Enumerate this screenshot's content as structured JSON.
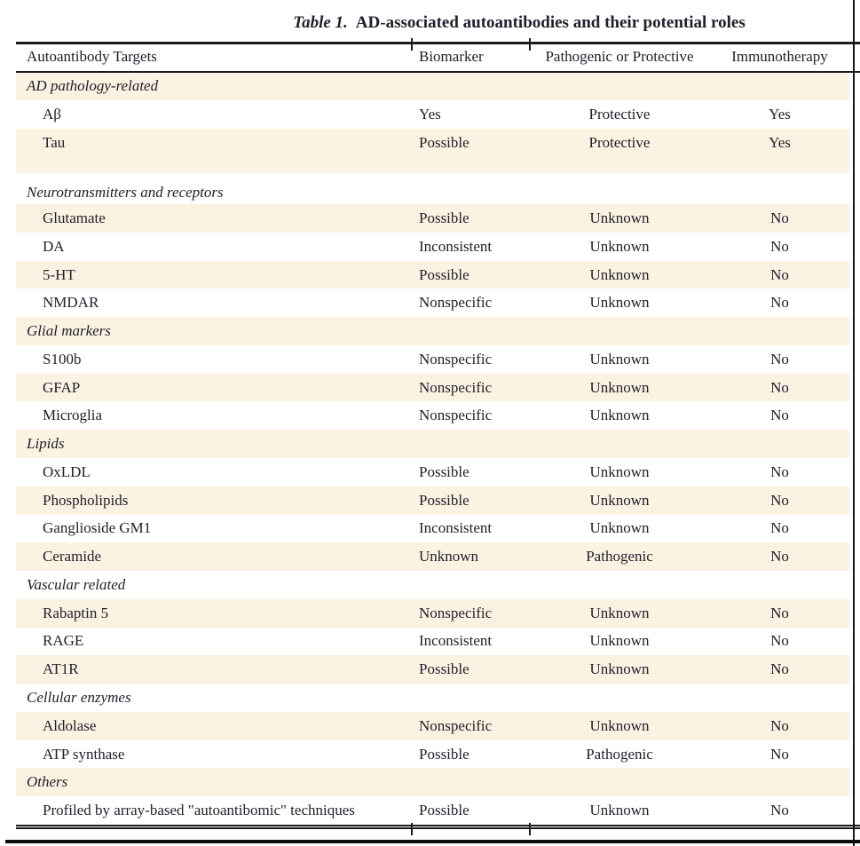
{
  "title": {
    "prefix": "Table 1.",
    "text": "AD-associated autoantibodies and their potential roles"
  },
  "columns": [
    "Autoantibody Targets",
    "Biomarker",
    "Pathogenic or Protective",
    "Immunotherapy"
  ],
  "colors": {
    "row_stripe": "#fcf2e1",
    "text": "#21212d",
    "rule": "#1c1c1c"
  },
  "rows": [
    {
      "type": "section",
      "bg": "cream",
      "label": "AD pathology-related"
    },
    {
      "type": "item",
      "bg": "white",
      "label": "Aβ",
      "biomarker": "Yes",
      "pathogenic_or_protective": "Protective",
      "immunotherapy": "Yes"
    },
    {
      "type": "item",
      "bg": "cream",
      "extra_space_below": true,
      "label": "Tau",
      "biomarker": "Possible",
      "pathogenic_or_protective": "Protective",
      "immunotherapy": "Yes"
    },
    {
      "type": "section",
      "bg": "white",
      "taller": true,
      "label": "Neurotransmitters and receptors"
    },
    {
      "type": "item",
      "bg": "cream",
      "label": "Glutamate",
      "biomarker": "Possible",
      "pathogenic_or_protective": "Unknown",
      "immunotherapy": "No"
    },
    {
      "type": "item",
      "bg": "white",
      "label": "DA",
      "biomarker": "Inconsistent",
      "pathogenic_or_protective": "Unknown",
      "immunotherapy": "No"
    },
    {
      "type": "item",
      "bg": "cream",
      "label": "5-HT",
      "biomarker": "Possible",
      "pathogenic_or_protective": "Unknown",
      "immunotherapy": "No"
    },
    {
      "type": "item",
      "bg": "white",
      "label": "NMDAR",
      "biomarker": "Nonspecific",
      "pathogenic_or_protective": "Unknown",
      "immunotherapy": "No"
    },
    {
      "type": "section",
      "bg": "cream",
      "label": "Glial markers"
    },
    {
      "type": "item",
      "bg": "white",
      "label": "S100b",
      "biomarker": "Nonspecific",
      "pathogenic_or_protective": "Unknown",
      "immunotherapy": "No"
    },
    {
      "type": "item",
      "bg": "cream",
      "label": "GFAP",
      "biomarker": "Nonspecific",
      "pathogenic_or_protective": "Unknown",
      "immunotherapy": "No"
    },
    {
      "type": "item",
      "bg": "white",
      "label": "Microglia",
      "biomarker": "Nonspecific",
      "pathogenic_or_protective": "Unknown",
      "immunotherapy": "No"
    },
    {
      "type": "section",
      "bg": "cream",
      "label": "Lipids"
    },
    {
      "type": "item",
      "bg": "white",
      "label": "OxLDL",
      "biomarker": "Possible",
      "pathogenic_or_protective": "Unknown",
      "immunotherapy": "No"
    },
    {
      "type": "item",
      "bg": "cream",
      "label": "Phospholipids",
      "biomarker": "Possible",
      "pathogenic_or_protective": "Unknown",
      "immunotherapy": "No"
    },
    {
      "type": "item",
      "bg": "white",
      "label": "Ganglioside GM1",
      "biomarker": "Inconsistent",
      "pathogenic_or_protective": "Unknown",
      "immunotherapy": "No"
    },
    {
      "type": "item",
      "bg": "cream",
      "label": "Ceramide",
      "biomarker": "Unknown",
      "pathogenic_or_protective": "Pathogenic",
      "immunotherapy": "No"
    },
    {
      "type": "section",
      "bg": "white",
      "label": "Vascular related"
    },
    {
      "type": "item",
      "bg": "cream",
      "label": "Rabaptin 5",
      "biomarker": "Nonspecific",
      "pathogenic_or_protective": "Unknown",
      "immunotherapy": "No"
    },
    {
      "type": "item",
      "bg": "white",
      "label": "RAGE",
      "biomarker": "Inconsistent",
      "pathogenic_or_protective": "Unknown",
      "immunotherapy": "No"
    },
    {
      "type": "item",
      "bg": "cream",
      "label": "AT1R",
      "biomarker": "Possible",
      "pathogenic_or_protective": "Unknown",
      "immunotherapy": "No"
    },
    {
      "type": "section",
      "bg": "white",
      "label": "Cellular enzymes"
    },
    {
      "type": "item",
      "bg": "cream",
      "label": "Aldolase",
      "biomarker": "Nonspecific",
      "pathogenic_or_protective": "Unknown",
      "immunotherapy": "No"
    },
    {
      "type": "item",
      "bg": "white",
      "label": "ATP synthase",
      "biomarker": "Possible",
      "pathogenic_or_protective": "Pathogenic",
      "immunotherapy": "No"
    },
    {
      "type": "section",
      "bg": "cream",
      "label": "Others"
    },
    {
      "type": "item",
      "bg": "white",
      "label": "Profiled by array-based \"autoantibomic\" techniques",
      "biomarker": "Possible",
      "pathogenic_or_protective": "Unknown",
      "immunotherapy": "No"
    }
  ]
}
